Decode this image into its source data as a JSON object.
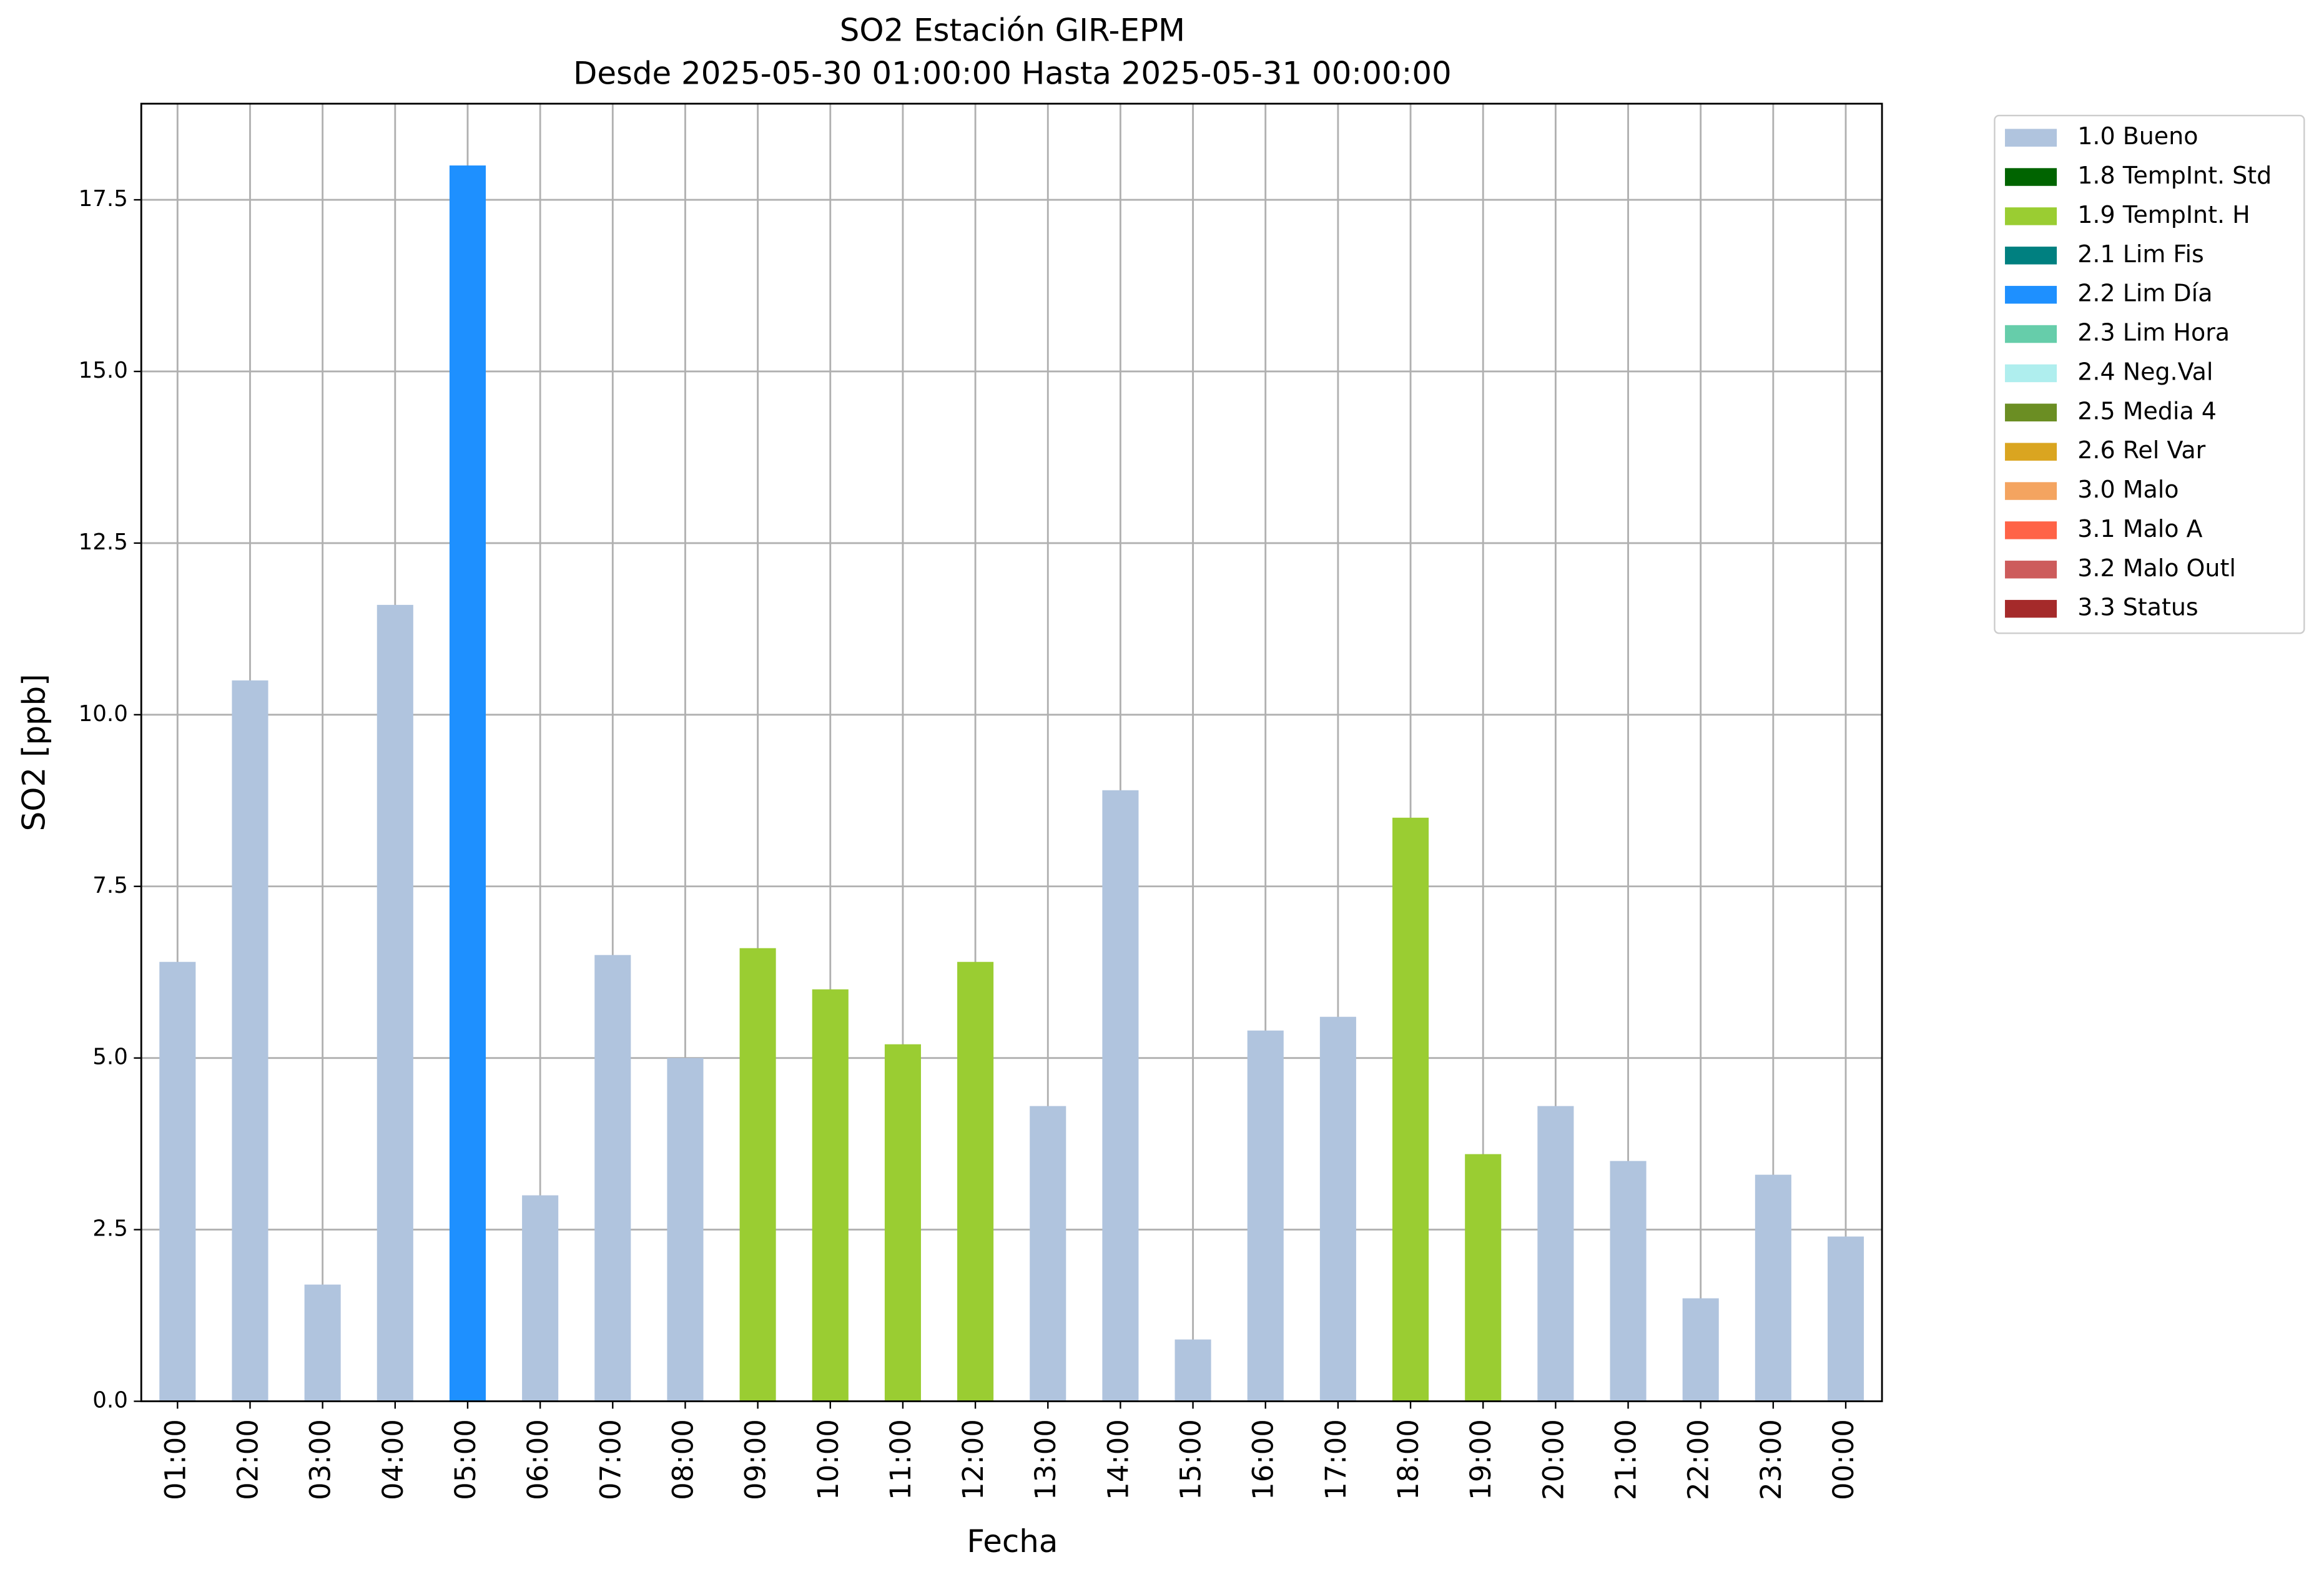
{
  "chart_data": {
    "type": "bar",
    "stacked": true,
    "title": "SO2 Estación GIR-EPM",
    "subtitle": "Desde 2025-05-30 01:00:00 Hasta 2025-05-31 00:00:00",
    "x_label": "Fecha",
    "y_label": "SO2 [ppb]",
    "categories": [
      "01:00",
      "02:00",
      "03:00",
      "04:00",
      "05:00",
      "06:00",
      "07:00",
      "08:00",
      "09:00",
      "10:00",
      "11:00",
      "12:00",
      "13:00",
      "14:00",
      "15:00",
      "16:00",
      "17:00",
      "18:00",
      "19:00",
      "20:00",
      "21:00",
      "22:00",
      "23:00",
      "00:00"
    ],
    "ylim": [
      0,
      18.9
    ],
    "yticks": [
      {
        "value": 0,
        "label": "0.0"
      },
      2.5,
      {
        "value": 5,
        "label": "5.0"
      },
      7.5,
      {
        "value": 10,
        "label": "10.0"
      },
      12.5,
      {
        "value": 15,
        "label": "15.0"
      },
      17.5
    ],
    "grid": true,
    "legend": "outside upper right",
    "series": [
      {
        "name": "1.0 Bueno",
        "color": "#b0c4de",
        "values": [
          6.4,
          10.5,
          1.7,
          11.6,
          null,
          3.0,
          6.5,
          5.0,
          null,
          null,
          null,
          null,
          4.3,
          8.9,
          0.9,
          5.4,
          5.6,
          null,
          null,
          4.3,
          3.5,
          1.5,
          3.3,
          2.4
        ]
      },
      {
        "name": "1.8 TempInt. Std",
        "color": "#006400",
        "values": [
          null,
          null,
          null,
          null,
          null,
          null,
          null,
          null,
          null,
          null,
          null,
          null,
          null,
          null,
          null,
          null,
          null,
          null,
          null,
          null,
          null,
          null,
          null,
          null
        ]
      },
      {
        "name": "1.9 TempInt. H",
        "color": "#9acd32",
        "values": [
          null,
          null,
          null,
          null,
          null,
          null,
          null,
          null,
          6.6,
          6.0,
          5.2,
          6.4,
          null,
          null,
          null,
          null,
          null,
          8.5,
          3.6,
          null,
          null,
          null,
          null,
          null
        ]
      },
      {
        "name": "2.1 Lim Fis",
        "color": "#008080",
        "values": [
          null,
          null,
          null,
          null,
          null,
          null,
          null,
          null,
          null,
          null,
          null,
          null,
          null,
          null,
          null,
          null,
          null,
          null,
          null,
          null,
          null,
          null,
          null,
          null
        ]
      },
      {
        "name": "2.2 Lim Día",
        "color": "#1e90ff",
        "values": [
          null,
          null,
          null,
          null,
          18.0,
          null,
          null,
          null,
          null,
          null,
          null,
          null,
          null,
          null,
          null,
          null,
          null,
          null,
          null,
          null,
          null,
          null,
          null,
          null
        ]
      },
      {
        "name": "2.3 Lim Hora",
        "color": "#66cdaa",
        "values": [
          null,
          null,
          null,
          null,
          null,
          null,
          null,
          null,
          null,
          null,
          null,
          null,
          null,
          null,
          null,
          null,
          null,
          null,
          null,
          null,
          null,
          null,
          null,
          null
        ]
      },
      {
        "name": "2.4 Neg.Val",
        "color": "#afeeee",
        "values": [
          null,
          null,
          null,
          null,
          null,
          null,
          null,
          null,
          null,
          null,
          null,
          null,
          null,
          null,
          null,
          null,
          null,
          null,
          null,
          null,
          null,
          null,
          null,
          null
        ]
      },
      {
        "name": "2.5 Media 4",
        "color": "#6b8e23",
        "values": [
          null,
          null,
          null,
          null,
          null,
          null,
          null,
          null,
          null,
          null,
          null,
          null,
          null,
          null,
          null,
          null,
          null,
          null,
          null,
          null,
          null,
          null,
          null,
          null
        ]
      },
      {
        "name": "2.6 Rel Var",
        "color": "#daa520",
        "values": [
          null,
          null,
          null,
          null,
          null,
          null,
          null,
          null,
          null,
          null,
          null,
          null,
          null,
          null,
          null,
          null,
          null,
          null,
          null,
          null,
          null,
          null,
          null,
          null
        ]
      },
      {
        "name": "3.0 Malo",
        "color": "#f4a460",
        "values": [
          null,
          null,
          null,
          null,
          null,
          null,
          null,
          null,
          null,
          null,
          null,
          null,
          null,
          null,
          null,
          null,
          null,
          null,
          null,
          null,
          null,
          null,
          null,
          null
        ]
      },
      {
        "name": "3.1 Malo A",
        "color": "#ff6347",
        "values": [
          null,
          null,
          null,
          null,
          null,
          null,
          null,
          null,
          null,
          null,
          null,
          null,
          null,
          null,
          null,
          null,
          null,
          null,
          null,
          null,
          null,
          null,
          null,
          null
        ]
      },
      {
        "name": "3.2 Malo Outl",
        "color": "#cd5c5c",
        "values": [
          null,
          null,
          null,
          null,
          null,
          null,
          null,
          null,
          null,
          null,
          null,
          null,
          null,
          null,
          null,
          null,
          null,
          null,
          null,
          null,
          null,
          null,
          null,
          null
        ]
      },
      {
        "name": "3.3 Status",
        "color": "#a52a2a",
        "values": [
          null,
          null,
          null,
          null,
          null,
          null,
          null,
          null,
          null,
          null,
          null,
          null,
          null,
          null,
          null,
          null,
          null,
          null,
          null,
          null,
          null,
          null,
          null,
          null
        ]
      }
    ]
  }
}
